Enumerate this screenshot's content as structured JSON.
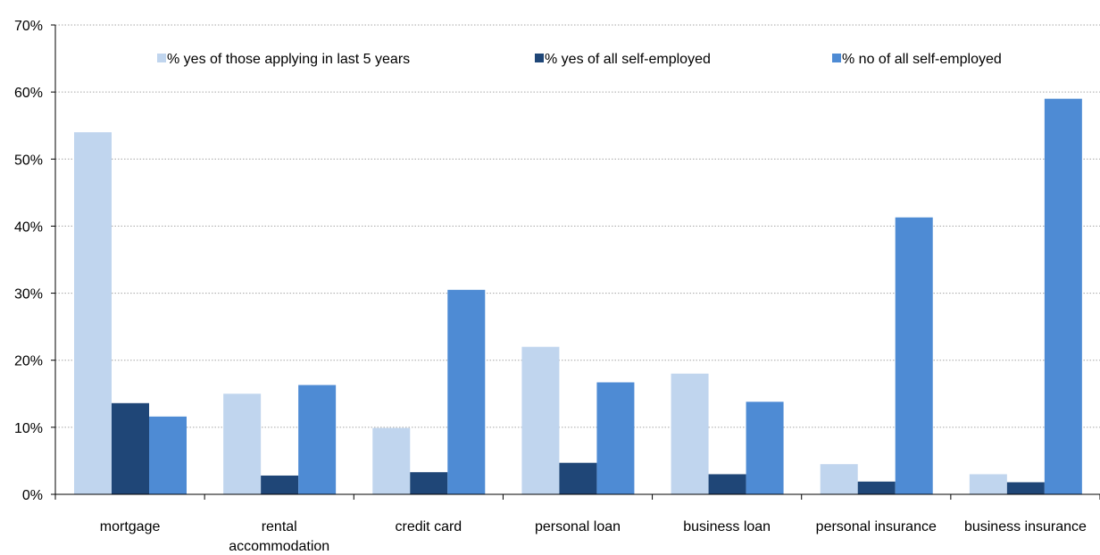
{
  "chart_data": {
    "type": "bar",
    "title": "",
    "xlabel": "",
    "ylabel": "",
    "ylim": [
      0,
      70
    ],
    "yticks": [
      "0%",
      "10%",
      "20%",
      "30%",
      "40%",
      "50%",
      "60%",
      "70%"
    ],
    "grid": true,
    "legend_position": "top",
    "categories": [
      [
        "mortgage"
      ],
      [
        "rental",
        "accommodation"
      ],
      [
        "credit card"
      ],
      [
        "personal loan"
      ],
      [
        "business loan"
      ],
      [
        "personal insurance"
      ],
      [
        "business insurance"
      ]
    ],
    "series": [
      {
        "name": "% yes of those applying in last 5 years",
        "color": "#c0d5ee",
        "values": [
          54,
          15,
          9.9,
          22,
          18,
          4.5,
          3
        ]
      },
      {
        "name": "% yes of all self-employed",
        "color": "#1f4677",
        "values": [
          13.6,
          2.8,
          3.3,
          4.7,
          3,
          1.9,
          1.8
        ]
      },
      {
        "name": "% no of all self-employed",
        "color": "#4e8bd4",
        "values": [
          11.6,
          16.3,
          30.5,
          16.7,
          13.8,
          41.3,
          59
        ]
      }
    ]
  }
}
